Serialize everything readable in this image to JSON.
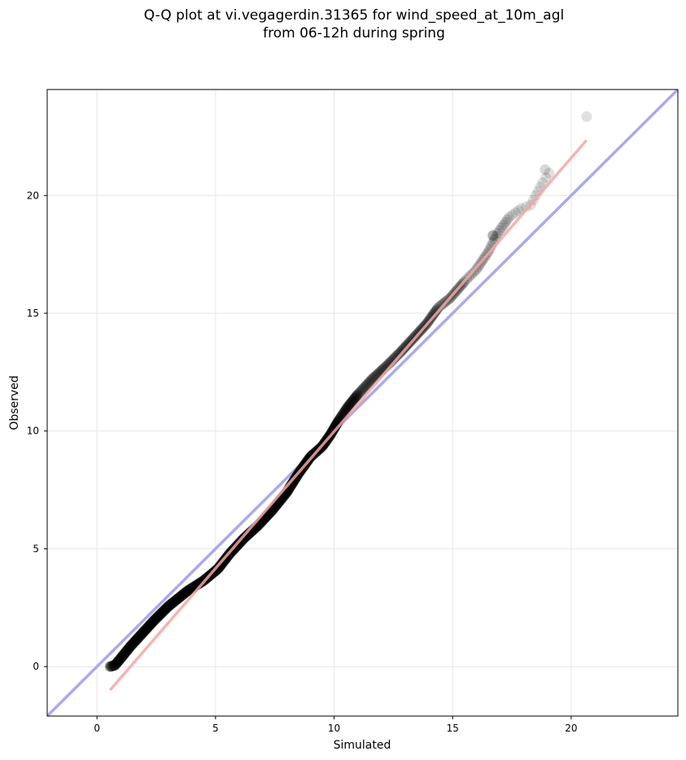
{
  "chart_data": {
    "type": "scatter",
    "title_line1": "Q-Q plot at vi.vegagerdin.31365 for wind_speed_at_10m_agl",
    "title_line2": "from 06-12h during spring",
    "xlabel": "Simulated",
    "ylabel": "Observed",
    "xlim": [
      -2.1,
      24.5
    ],
    "ylim": [
      -2.1,
      24.5
    ],
    "xticks": [
      0,
      5,
      10,
      15,
      20
    ],
    "yticks": [
      0,
      5,
      10,
      15,
      20
    ],
    "grid": true,
    "reference_line": {
      "name": "1:1",
      "color": "#aaaaee",
      "from": [
        -2.1,
        -2.1
      ],
      "to": [
        24.5,
        24.5
      ]
    },
    "fit_line": {
      "name": "fit",
      "color": "#f4a6a6",
      "from": [
        0.55,
        -1.0
      ],
      "to": [
        20.65,
        22.35
      ]
    },
    "point_color": "#000000",
    "quantile_curve": [
      [
        0.55,
        0.0
      ],
      [
        0.75,
        0.05
      ],
      [
        1.0,
        0.35
      ],
      [
        1.4,
        0.85
      ],
      [
        1.9,
        1.4
      ],
      [
        2.4,
        1.95
      ],
      [
        3.0,
        2.55
      ],
      [
        3.8,
        3.2
      ],
      [
        4.5,
        3.65
      ],
      [
        5.1,
        4.15
      ],
      [
        5.6,
        4.8
      ],
      [
        6.2,
        5.45
      ],
      [
        6.8,
        6.0
      ],
      [
        7.4,
        6.65
      ],
      [
        8.0,
        7.4
      ],
      [
        8.5,
        8.2
      ],
      [
        9.0,
        8.9
      ],
      [
        9.5,
        9.35
      ],
      [
        9.85,
        9.85
      ],
      [
        10.2,
        10.45
      ],
      [
        10.6,
        11.05
      ],
      [
        11.0,
        11.55
      ],
      [
        11.6,
        12.2
      ],
      [
        12.2,
        12.75
      ],
      [
        12.8,
        13.35
      ],
      [
        13.4,
        14.0
      ],
      [
        13.9,
        14.55
      ],
      [
        14.4,
        15.25
      ],
      [
        14.9,
        15.65
      ],
      [
        15.5,
        16.35
      ],
      [
        16.0,
        16.85
      ],
      [
        16.5,
        17.6
      ],
      [
        16.9,
        18.4
      ],
      [
        17.4,
        19.1
      ],
      [
        17.9,
        19.45
      ],
      [
        18.3,
        19.6
      ],
      [
        18.5,
        20.0
      ],
      [
        18.8,
        20.55
      ],
      [
        19.2,
        21.15
      ]
    ],
    "extreme_points": [
      {
        "x": 16.7,
        "y": 18.3,
        "alpha": 0.3
      },
      {
        "x": 18.9,
        "y": 21.1,
        "alpha": 0.15
      },
      {
        "x": 20.65,
        "y": 23.35,
        "alpha": 0.12
      }
    ]
  }
}
